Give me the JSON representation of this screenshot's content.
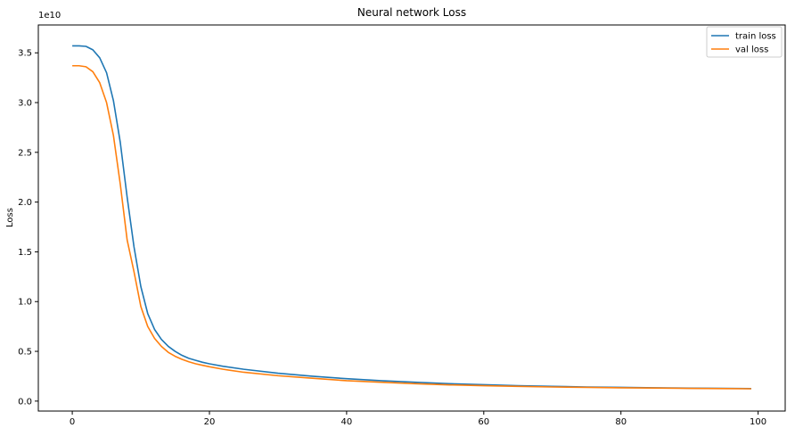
{
  "chart_data": {
    "type": "line",
    "title": "Neural network Loss",
    "xlabel": "",
    "ylabel": "Loss",
    "y_offset_label": "1e10",
    "xlim": [
      -4.95,
      103.95
    ],
    "ylim": [
      -0.1,
      3.78
    ],
    "x_ticks": [
      0,
      20,
      40,
      60,
      80,
      100
    ],
    "x_tick_labels": [
      "0",
      "20",
      "40",
      "60",
      "80",
      "100"
    ],
    "y_ticks": [
      0.0,
      0.5,
      1.0,
      1.5,
      2.0,
      2.5,
      3.0,
      3.5
    ],
    "y_tick_labels": [
      "0.0",
      "0.5",
      "1.0",
      "1.5",
      "2.0",
      "2.5",
      "3.0",
      "3.5"
    ],
    "grid": false,
    "legend_position": "top-right",
    "series": [
      {
        "name": "train loss",
        "color": "#1f77b4",
        "points": [
          [
            0,
            3.57
          ],
          [
            1,
            3.57
          ],
          [
            2,
            3.565
          ],
          [
            3,
            3.53
          ],
          [
            4,
            3.45
          ],
          [
            5,
            3.3
          ],
          [
            6,
            3.02
          ],
          [
            7,
            2.6
          ],
          [
            8,
            2.05
          ],
          [
            9,
            1.55
          ],
          [
            10,
            1.15
          ],
          [
            11,
            0.88
          ],
          [
            12,
            0.72
          ],
          [
            13,
            0.62
          ],
          [
            14,
            0.55
          ],
          [
            15,
            0.5
          ],
          [
            16,
            0.46
          ],
          [
            17,
            0.43
          ],
          [
            18,
            0.41
          ],
          [
            19,
            0.39
          ],
          [
            20,
            0.375
          ],
          [
            22,
            0.35
          ],
          [
            25,
            0.32
          ],
          [
            30,
            0.28
          ],
          [
            35,
            0.25
          ],
          [
            40,
            0.225
          ],
          [
            45,
            0.205
          ],
          [
            50,
            0.19
          ],
          [
            55,
            0.175
          ],
          [
            60,
            0.165
          ],
          [
            65,
            0.155
          ],
          [
            70,
            0.148
          ],
          [
            75,
            0.142
          ],
          [
            80,
            0.138
          ],
          [
            85,
            0.134
          ],
          [
            90,
            0.13
          ],
          [
            95,
            0.128
          ],
          [
            99,
            0.126
          ]
        ]
      },
      {
        "name": "val loss",
        "color": "#ff7f0e",
        "points": [
          [
            0,
            3.37
          ],
          [
            1,
            3.37
          ],
          [
            2,
            3.36
          ],
          [
            3,
            3.31
          ],
          [
            4,
            3.2
          ],
          [
            5,
            3.0
          ],
          [
            6,
            2.67
          ],
          [
            7,
            2.18
          ],
          [
            8,
            1.62
          ],
          [
            9,
            1.3
          ],
          [
            10,
            0.95
          ],
          [
            11,
            0.75
          ],
          [
            12,
            0.63
          ],
          [
            13,
            0.55
          ],
          [
            14,
            0.49
          ],
          [
            15,
            0.45
          ],
          [
            16,
            0.42
          ],
          [
            17,
            0.395
          ],
          [
            18,
            0.375
          ],
          [
            19,
            0.36
          ],
          [
            20,
            0.345
          ],
          [
            22,
            0.32
          ],
          [
            25,
            0.29
          ],
          [
            30,
            0.255
          ],
          [
            35,
            0.23
          ],
          [
            40,
            0.205
          ],
          [
            45,
            0.19
          ],
          [
            50,
            0.175
          ],
          [
            55,
            0.163
          ],
          [
            60,
            0.155
          ],
          [
            65,
            0.148
          ],
          [
            70,
            0.142
          ],
          [
            75,
            0.138
          ],
          [
            80,
            0.134
          ],
          [
            85,
            0.131
          ],
          [
            90,
            0.128
          ],
          [
            95,
            0.126
          ],
          [
            99,
            0.124
          ]
        ]
      }
    ]
  }
}
